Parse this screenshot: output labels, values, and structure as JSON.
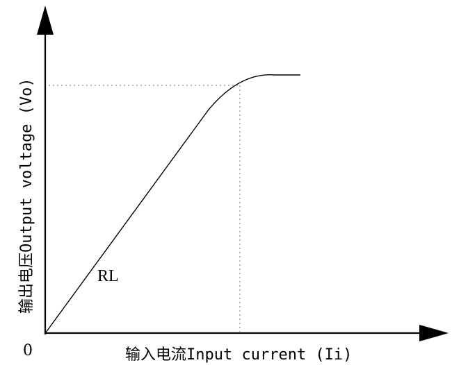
{
  "diagram": {
    "origin_label": "0",
    "x_axis_label": "输入电流Input current (Ii)",
    "y_axis_label": "输出电压Output voltage (Vo)",
    "curve_label": "RL"
  }
}
